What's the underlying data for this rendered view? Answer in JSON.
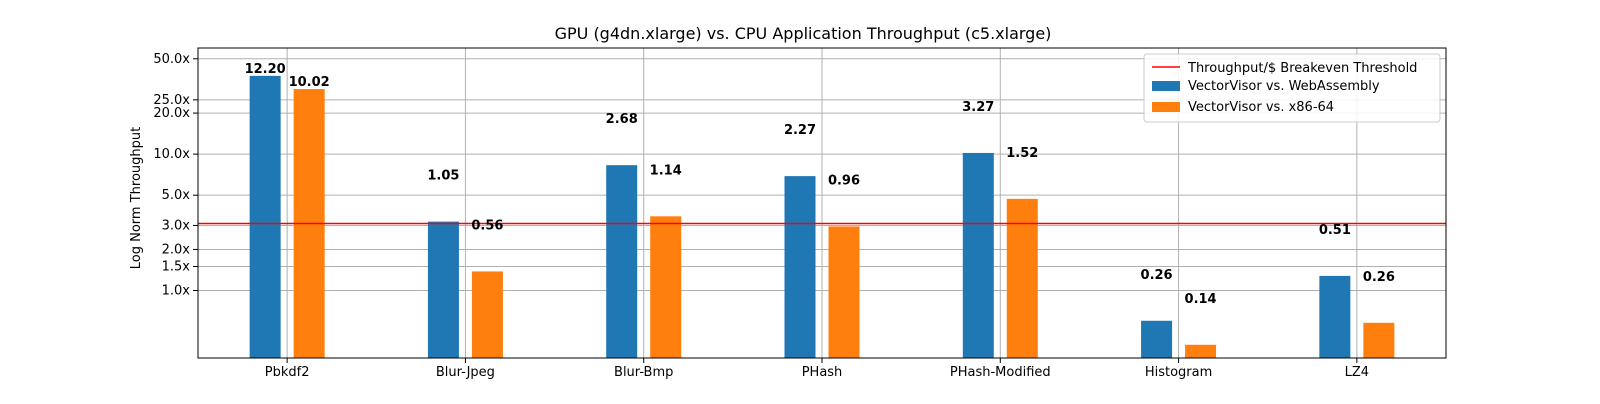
{
  "chart_data": {
    "type": "bar",
    "title": "GPU (g4dn.xlarge) vs. CPU Application Throughput (c5.xlarge)",
    "xlabel": "",
    "ylabel": "Log Norm Throughput",
    "yscale": "log",
    "ylim": [
      0.32,
      60
    ],
    "yticks": [
      {
        "value": 1.0,
        "label": "1.0x"
      },
      {
        "value": 1.5,
        "label": "1.5x"
      },
      {
        "value": 2.0,
        "label": "2.0x"
      },
      {
        "value": 3.0,
        "label": "3.0x"
      },
      {
        "value": 5.0,
        "label": "5.0x"
      },
      {
        "value": 10.0,
        "label": "10.0x"
      },
      {
        "value": 20.0,
        "label": "20.0x"
      },
      {
        "value": 25.0,
        "label": "25.0x"
      },
      {
        "value": 50.0,
        "label": "50.0x"
      }
    ],
    "categories": [
      "Pbkdf2",
      "Blur-Jpeg",
      "Blur-Bmp",
      "PHash",
      "PHash-Modified",
      "Histogram",
      "LZ4"
    ],
    "series": [
      {
        "name": "VectorVisor vs. WebAssembly",
        "color": "#1f77b4",
        "values": [
          37.5,
          3.2,
          8.3,
          6.9,
          10.2,
          0.6,
          1.28
        ],
        "labels": [
          "12.20",
          "1.05",
          "2.68",
          "2.27",
          "3.27",
          "0.26",
          "0.51"
        ]
      },
      {
        "name": "VectorVisor vs. x86-64",
        "color": "#ff7f0e",
        "values": [
          30.0,
          1.38,
          3.5,
          2.95,
          4.7,
          0.4,
          0.58
        ],
        "labels": [
          "10.02",
          "0.56",
          "1.14",
          "0.96",
          "1.52",
          "0.14",
          "0.26"
        ]
      }
    ],
    "reference_line": {
      "name": "Throughput/$ Breakeven Threshold",
      "value": 3.1,
      "color": "#ff0000"
    },
    "grid": true,
    "legend_position": "top-right"
  }
}
